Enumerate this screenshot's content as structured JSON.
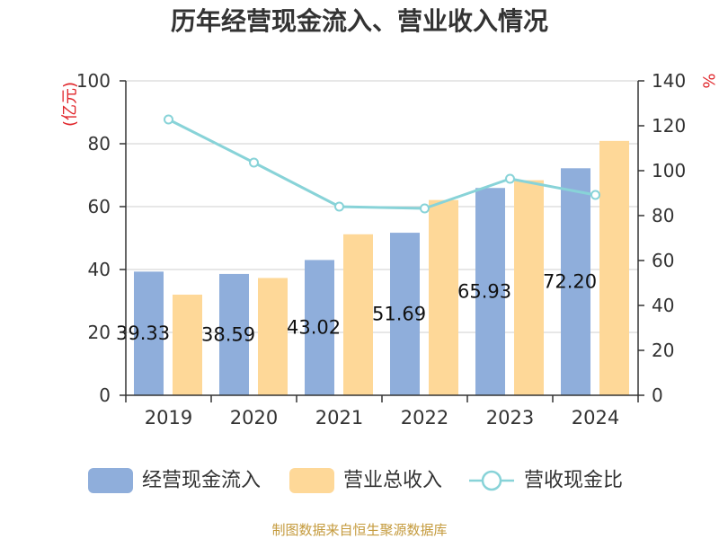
{
  "chart_data": {
    "type": "bar",
    "title": "历年经营现金流入、营业收入情况",
    "categories": [
      "2019",
      "2020",
      "2021",
      "2022",
      "2023",
      "2024"
    ],
    "ylabel": "(亿元)",
    "y2label": "%",
    "ylim": [
      0,
      100
    ],
    "y2lim": [
      0,
      140
    ],
    "y_ticks": [
      0,
      20,
      40,
      60,
      80,
      100
    ],
    "y2_ticks": [
      0,
      20,
      40,
      60,
      80,
      100,
      120,
      140
    ],
    "grid": true,
    "legend_position": "bottom",
    "series": [
      {
        "name": "经营现金流入",
        "type": "bar",
        "axis": "left",
        "color": "#8FAEDB",
        "values": [
          39.33,
          38.59,
          43.02,
          51.69,
          65.93,
          72.2
        ],
        "data_labels": [
          "39.33",
          "38.59",
          "43.02",
          "51.69",
          "65.93",
          "72.20"
        ]
      },
      {
        "name": "营业总收入",
        "type": "bar",
        "axis": "left",
        "color": "#FED898",
        "values": [
          32.0,
          37.3,
          51.2,
          62.1,
          68.4,
          80.9
        ]
      },
      {
        "name": "营收现金比",
        "type": "line",
        "axis": "right",
        "color": "#88D3D8",
        "values": [
          122.8,
          103.6,
          84.0,
          83.2,
          96.4,
          89.2
        ]
      }
    ]
  },
  "source_note": "制图数据来自恒生聚源数据库",
  "colors": {
    "axis_label": "#E0262B",
    "source_note": "#C49A3C"
  }
}
